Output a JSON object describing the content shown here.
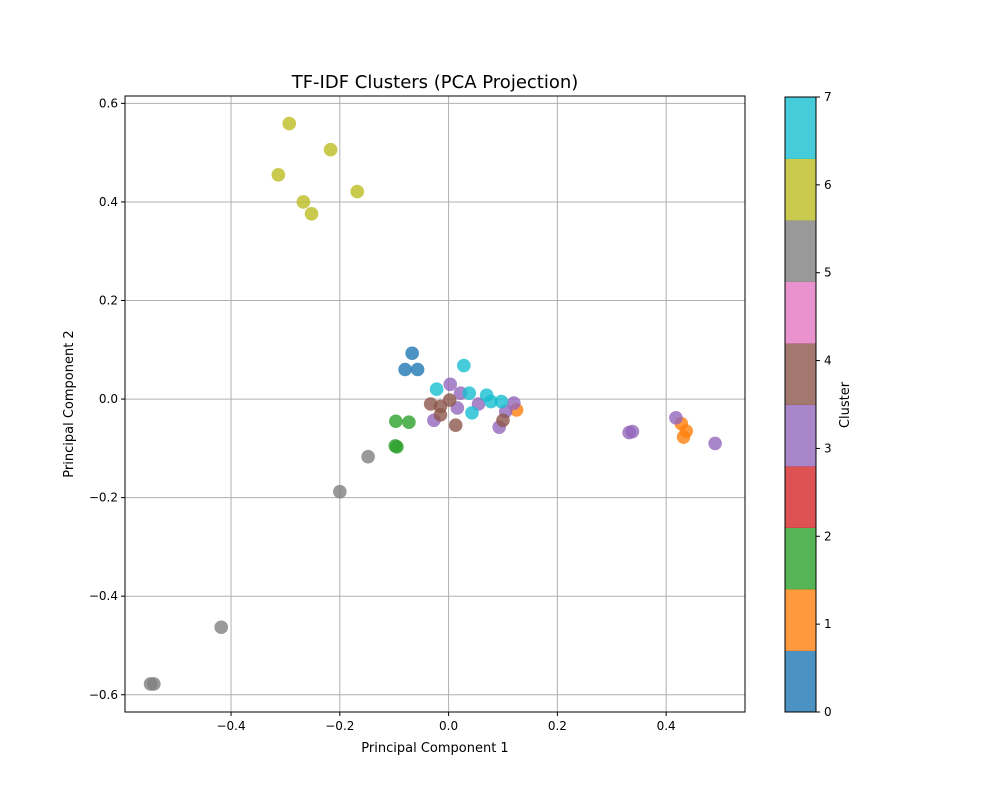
{
  "chart_data": {
    "type": "scatter",
    "title": "TF-IDF Clusters (PCA Projection)",
    "xlabel": "Principal Component 1",
    "ylabel": "Principal Component 2",
    "xlim": [
      -0.595,
      0.545
    ],
    "ylim": [
      -0.635,
      0.615
    ],
    "xticks": [
      -0.4,
      -0.2,
      0.0,
      0.2,
      0.4
    ],
    "xtick_labels": [
      "−0.4",
      "−0.2",
      "0.0",
      "0.2",
      "0.4"
    ],
    "yticks": [
      -0.6,
      -0.4,
      -0.2,
      0.0,
      0.2,
      0.4,
      0.6
    ],
    "ytick_labels": [
      "−0.6",
      "−0.4",
      "−0.2",
      "0.0",
      "0.2",
      "0.4",
      "0.6"
    ],
    "grid": true,
    "colorbar": {
      "label": "Cluster",
      "range": [
        0,
        7
      ],
      "ticks": [
        0,
        1,
        2,
        3,
        4,
        5,
        6,
        7
      ],
      "tick_labels": [
        "0",
        "1",
        "2",
        "3",
        "4",
        "5",
        "6",
        "7"
      ],
      "colors": [
        "#1f77b4",
        "#ff7f0e",
        "#2ca02c",
        "#d62728",
        "#9467bd",
        "#8c564b",
        "#e377c2",
        "#7f7f7f",
        "#bcbd22",
        "#17becf"
      ]
    },
    "points": [
      {
        "x": -0.067,
        "y": 0.093,
        "cluster": 0
      },
      {
        "x": -0.08,
        "y": 0.06,
        "cluster": 0
      },
      {
        "x": -0.057,
        "y": 0.06,
        "cluster": 0
      },
      {
        "x": 0.125,
        "y": -0.022,
        "cluster": 1
      },
      {
        "x": 0.428,
        "y": -0.05,
        "cluster": 1
      },
      {
        "x": 0.437,
        "y": -0.065,
        "cluster": 1
      },
      {
        "x": 0.432,
        "y": -0.077,
        "cluster": 1
      },
      {
        "x": -0.097,
        "y": -0.045,
        "cluster": 2
      },
      {
        "x": -0.073,
        "y": -0.047,
        "cluster": 2
      },
      {
        "x": -0.098,
        "y": -0.095,
        "cluster": 2
      },
      {
        "x": -0.095,
        "y": -0.097,
        "cluster": 2
      },
      {
        "x": 0.003,
        "y": 0.03,
        "cluster": 3
      },
      {
        "x": 0.022,
        "y": 0.012,
        "cluster": 3
      },
      {
        "x": 0.016,
        "y": -0.018,
        "cluster": 3
      },
      {
        "x": 0.055,
        "y": -0.01,
        "cluster": 3
      },
      {
        "x": 0.105,
        "y": -0.025,
        "cluster": 3
      },
      {
        "x": 0.12,
        "y": -0.008,
        "cluster": 3
      },
      {
        "x": -0.027,
        "y": -0.043,
        "cluster": 3
      },
      {
        "x": 0.093,
        "y": -0.057,
        "cluster": 3
      },
      {
        "x": 0.332,
        "y": -0.068,
        "cluster": 3
      },
      {
        "x": 0.338,
        "y": -0.066,
        "cluster": 3
      },
      {
        "x": 0.418,
        "y": -0.038,
        "cluster": 3
      },
      {
        "x": 0.49,
        "y": -0.09,
        "cluster": 3
      },
      {
        "x": -0.033,
        "y": -0.01,
        "cluster": 4
      },
      {
        "x": -0.015,
        "y": -0.015,
        "cluster": 4
      },
      {
        "x": 0.002,
        "y": -0.002,
        "cluster": 4
      },
      {
        "x": -0.015,
        "y": -0.032,
        "cluster": 4
      },
      {
        "x": 0.013,
        "y": -0.053,
        "cluster": 4
      },
      {
        "x": 0.1,
        "y": -0.043,
        "cluster": 4
      },
      {
        "x": -0.148,
        "y": -0.117,
        "cluster": 5
      },
      {
        "x": -0.2,
        "y": -0.188,
        "cluster": 5
      },
      {
        "x": -0.418,
        "y": -0.463,
        "cluster": 5
      },
      {
        "x": -0.548,
        "y": -0.578,
        "cluster": 5
      },
      {
        "x": -0.542,
        "y": -0.578,
        "cluster": 5
      },
      {
        "x": -0.293,
        "y": 0.559,
        "cluster": 6
      },
      {
        "x": -0.217,
        "y": 0.506,
        "cluster": 6
      },
      {
        "x": -0.313,
        "y": 0.455,
        "cluster": 6
      },
      {
        "x": -0.267,
        "y": 0.4,
        "cluster": 6
      },
      {
        "x": -0.252,
        "y": 0.376,
        "cluster": 6
      },
      {
        "x": -0.168,
        "y": 0.421,
        "cluster": 6
      },
      {
        "x": 0.028,
        "y": 0.068,
        "cluster": 7
      },
      {
        "x": -0.022,
        "y": 0.02,
        "cluster": 7
      },
      {
        "x": 0.038,
        "y": 0.012,
        "cluster": 7
      },
      {
        "x": 0.07,
        "y": 0.008,
        "cluster": 7
      },
      {
        "x": 0.078,
        "y": -0.005,
        "cluster": 7
      },
      {
        "x": 0.097,
        "y": -0.005,
        "cluster": 7
      },
      {
        "x": 0.043,
        "y": -0.028,
        "cluster": 7
      }
    ]
  }
}
